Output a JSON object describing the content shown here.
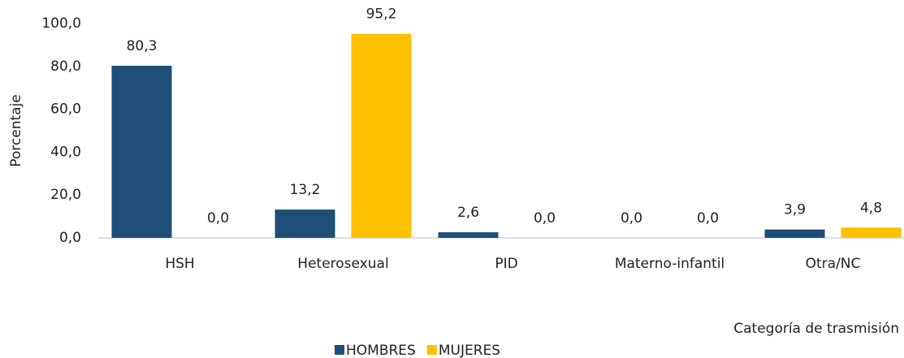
{
  "chart_data": {
    "type": "bar",
    "x_label": "Categoría de trasmisión",
    "y_label": "Porcentaje",
    "categories": [
      "HSH",
      "Heterosexual",
      "PID",
      "Materno-infantil",
      "Otra/NC"
    ],
    "series": [
      {
        "name": "HOMBRES",
        "color": "#1f4e79",
        "values": [
          80.3,
          13.2,
          2.6,
          0,
          3.9
        ],
        "value_labels": [
          "80,3",
          "13,2",
          "2,6",
          "0,0",
          "3,9"
        ]
      },
      {
        "name": "MUJERES",
        "color": "#ffc000",
        "values": [
          0,
          95.2,
          0,
          0,
          4.8
        ],
        "value_labels": [
          "0,0",
          "95,2",
          "0,0",
          "0,0",
          "4,8"
        ]
      }
    ],
    "ylim": [
      0,
      100
    ],
    "yticks": [
      {
        "value": 0,
        "label": "0,0"
      },
      {
        "value": 20,
        "label": "20,0"
      },
      {
        "value": 40,
        "label": "40,0"
      },
      {
        "value": 60,
        "label": "60,0"
      },
      {
        "value": 80,
        "label": "80,0"
      },
      {
        "value": 100,
        "label": "100,0"
      }
    ],
    "grid": false,
    "legend": "bottom"
  }
}
